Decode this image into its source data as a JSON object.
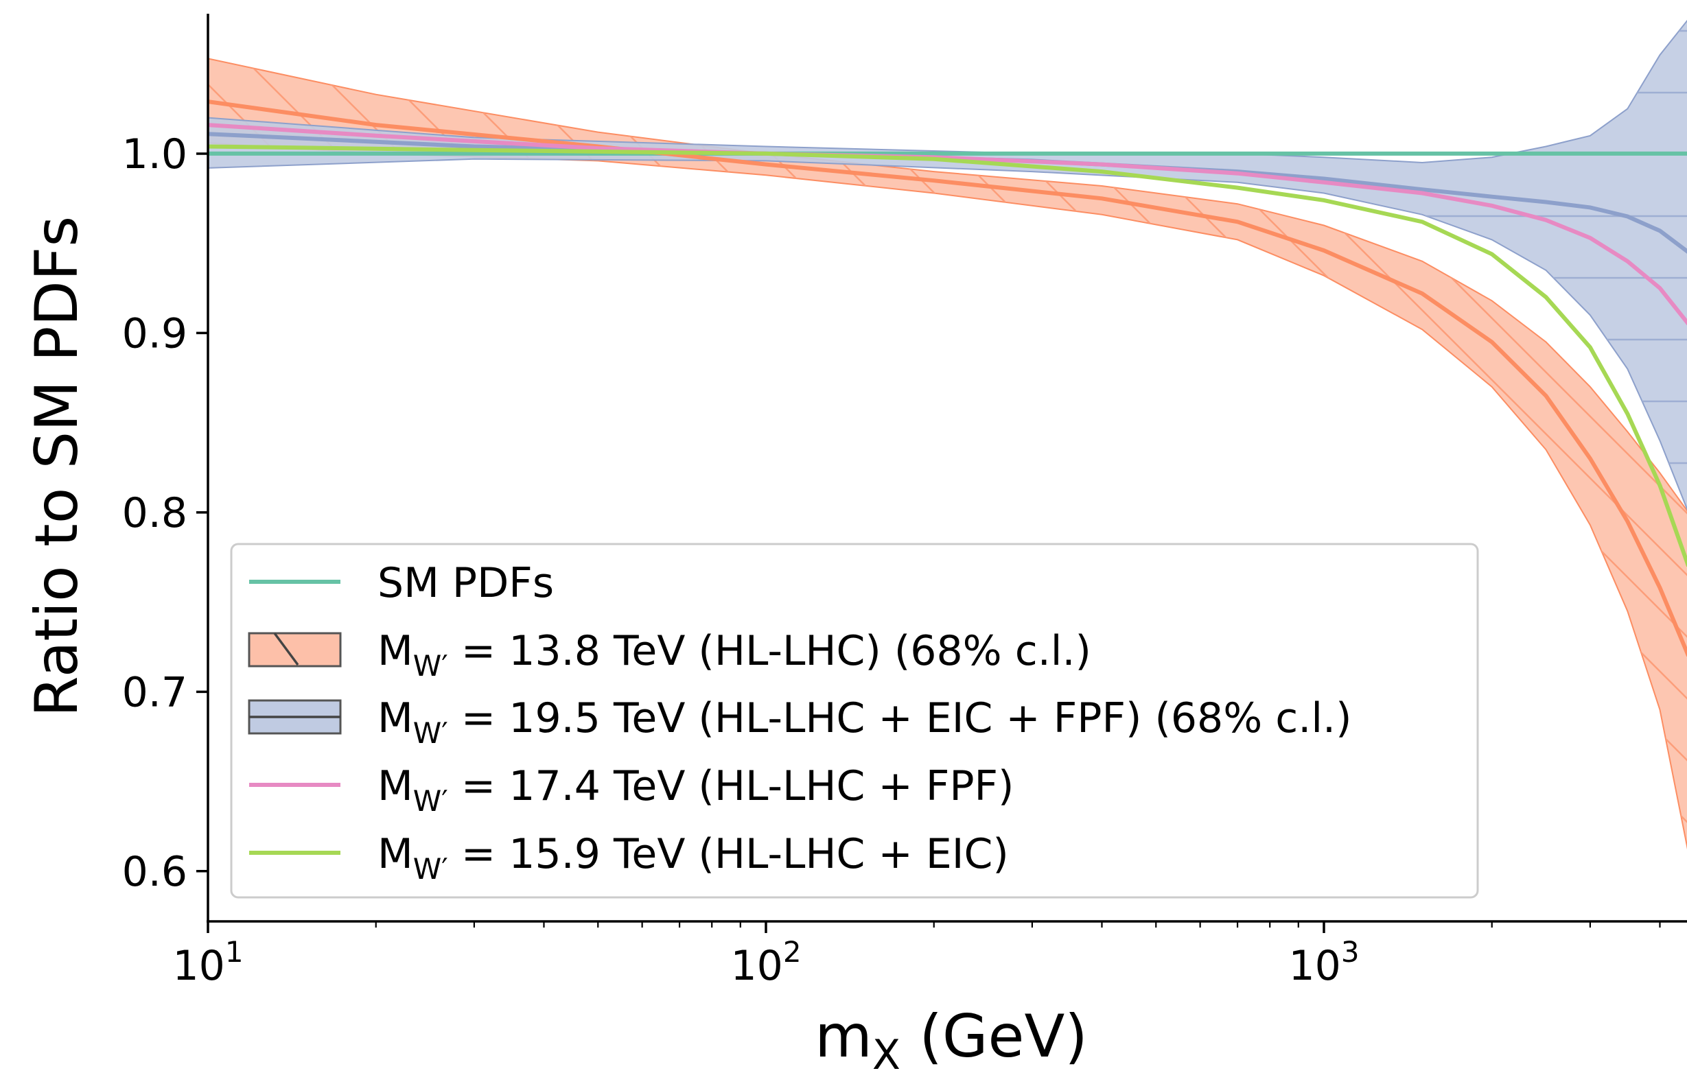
{
  "chart_data": {
    "type": "line",
    "xlabel_main": "m",
    "xlabel_sub": "X",
    "xlabel_unit": " (GeV)",
    "ylabel": "Ratio to SM PDFs",
    "xscale": "log",
    "xlim": [
      10,
      6500
    ],
    "ylim": [
      0.572,
      1.078
    ],
    "yticks": [
      {
        "value": 0.6,
        "label": "0.6"
      },
      {
        "value": 0.7,
        "label": "0.7"
      },
      {
        "value": 0.8,
        "label": "0.8"
      },
      {
        "value": 0.9,
        "label": "0.9"
      },
      {
        "value": 1.0,
        "label": "1.0"
      }
    ],
    "xticks": [
      {
        "value": 10,
        "base": "10",
        "exp": "1"
      },
      {
        "value": 100,
        "base": "10",
        "exp": "2"
      },
      {
        "value": 1000,
        "base": "10",
        "exp": "3"
      }
    ],
    "grid": false,
    "legend_position": "lower-left",
    "series": [
      {
        "name": "SM PDFs",
        "kind": "line",
        "color": "#66c2a5",
        "points": [
          [
            10,
            1.0
          ],
          [
            6500,
            1.0
          ]
        ]
      },
      {
        "name_parts": [
          "M",
          "W′",
          " = 13.8 TeV (HL-LHC) (68% c.l.)"
        ],
        "kind": "band",
        "color": "#fc8d62",
        "hatch": "diagonal",
        "center": [
          [
            10,
            1.029
          ],
          [
            20,
            1.016
          ],
          [
            50,
            1.004
          ],
          [
            100,
            0.994
          ],
          [
            200,
            0.985
          ],
          [
            400,
            0.975
          ],
          [
            700,
            0.962
          ],
          [
            1000,
            0.946
          ],
          [
            1500,
            0.922
          ],
          [
            2000,
            0.895
          ],
          [
            2500,
            0.865
          ],
          [
            3000,
            0.83
          ],
          [
            3500,
            0.795
          ],
          [
            4000,
            0.758
          ],
          [
            4500,
            0.72
          ]
        ],
        "upper": [
          [
            10,
            1.053
          ],
          [
            20,
            1.033
          ],
          [
            50,
            1.012
          ],
          [
            100,
            1.0
          ],
          [
            200,
            0.99
          ],
          [
            400,
            0.982
          ],
          [
            700,
            0.972
          ],
          [
            1000,
            0.96
          ],
          [
            1500,
            0.94
          ],
          [
            2000,
            0.918
          ],
          [
            2500,
            0.895
          ],
          [
            3000,
            0.87
          ],
          [
            3500,
            0.845
          ],
          [
            4000,
            0.822
          ],
          [
            4500,
            0.8
          ]
        ],
        "lower": [
          [
            10,
            1.006
          ],
          [
            20,
            1.0
          ],
          [
            50,
            0.996
          ],
          [
            100,
            0.988
          ],
          [
            200,
            0.978
          ],
          [
            400,
            0.966
          ],
          [
            700,
            0.952
          ],
          [
            1000,
            0.932
          ],
          [
            1500,
            0.902
          ],
          [
            2000,
            0.87
          ],
          [
            2500,
            0.835
          ],
          [
            3000,
            0.793
          ],
          [
            3500,
            0.745
          ],
          [
            4000,
            0.69
          ],
          [
            4500,
            0.61
          ]
        ]
      },
      {
        "name_parts": [
          "M",
          "W′",
          " = 19.5 TeV (HL-LHC + EIC + FPF) (68% c.l.)"
        ],
        "kind": "band",
        "color": "#8da0cb",
        "hatch": "horizontal",
        "center": [
          [
            10,
            1.011
          ],
          [
            30,
            1.004
          ],
          [
            100,
            1.0
          ],
          [
            300,
            0.996
          ],
          [
            700,
            0.99
          ],
          [
            1000,
            0.986
          ],
          [
            1500,
            0.98
          ],
          [
            2000,
            0.976
          ],
          [
            2500,
            0.973
          ],
          [
            3000,
            0.97
          ],
          [
            3500,
            0.965
          ],
          [
            4000,
            0.957
          ],
          [
            4500,
            0.945
          ]
        ],
        "upper": [
          [
            10,
            1.02
          ],
          [
            30,
            1.009
          ],
          [
            100,
            1.004
          ],
          [
            300,
            1.0
          ],
          [
            700,
            1.0
          ],
          [
            1000,
            0.998
          ],
          [
            1500,
            0.995
          ],
          [
            2000,
            0.998
          ],
          [
            2500,
            1.004
          ],
          [
            3000,
            1.01
          ],
          [
            3500,
            1.025
          ],
          [
            4000,
            1.055
          ],
          [
            4500,
            1.075
          ]
        ],
        "lower": [
          [
            10,
            0.992
          ],
          [
            30,
            0.997
          ],
          [
            100,
            0.996
          ],
          [
            300,
            0.99
          ],
          [
            700,
            0.984
          ],
          [
            1000,
            0.978
          ],
          [
            1500,
            0.966
          ],
          [
            2000,
            0.952
          ],
          [
            2500,
            0.935
          ],
          [
            3000,
            0.91
          ],
          [
            3500,
            0.88
          ],
          [
            4000,
            0.84
          ],
          [
            4500,
            0.8
          ]
        ]
      },
      {
        "name_parts": [
          "M",
          "W′",
          " = 17.4 TeV (HL-LHC + FPF)"
        ],
        "kind": "line",
        "color": "#e78ac3",
        "points": [
          [
            10,
            1.016
          ],
          [
            20,
            1.01
          ],
          [
            50,
            1.003
          ],
          [
            100,
            1.0
          ],
          [
            200,
            0.998
          ],
          [
            400,
            0.994
          ],
          [
            700,
            0.989
          ],
          [
            1000,
            0.984
          ],
          [
            1500,
            0.978
          ],
          [
            2000,
            0.971
          ],
          [
            2500,
            0.963
          ],
          [
            3000,
            0.953
          ],
          [
            3500,
            0.94
          ],
          [
            4000,
            0.925
          ],
          [
            4500,
            0.905
          ]
        ]
      },
      {
        "name_parts": [
          "M",
          "W′",
          " = 15.9 TeV (HL-LHC + EIC)"
        ],
        "kind": "line",
        "color": "#a6d854",
        "points": [
          [
            10,
            1.004
          ],
          [
            30,
            1.002
          ],
          [
            100,
            1.0
          ],
          [
            200,
            0.997
          ],
          [
            400,
            0.99
          ],
          [
            700,
            0.981
          ],
          [
            1000,
            0.974
          ],
          [
            1500,
            0.962
          ],
          [
            2000,
            0.944
          ],
          [
            2500,
            0.92
          ],
          [
            3000,
            0.892
          ],
          [
            3500,
            0.855
          ],
          [
            4000,
            0.815
          ],
          [
            4500,
            0.77
          ]
        ]
      }
    ]
  }
}
